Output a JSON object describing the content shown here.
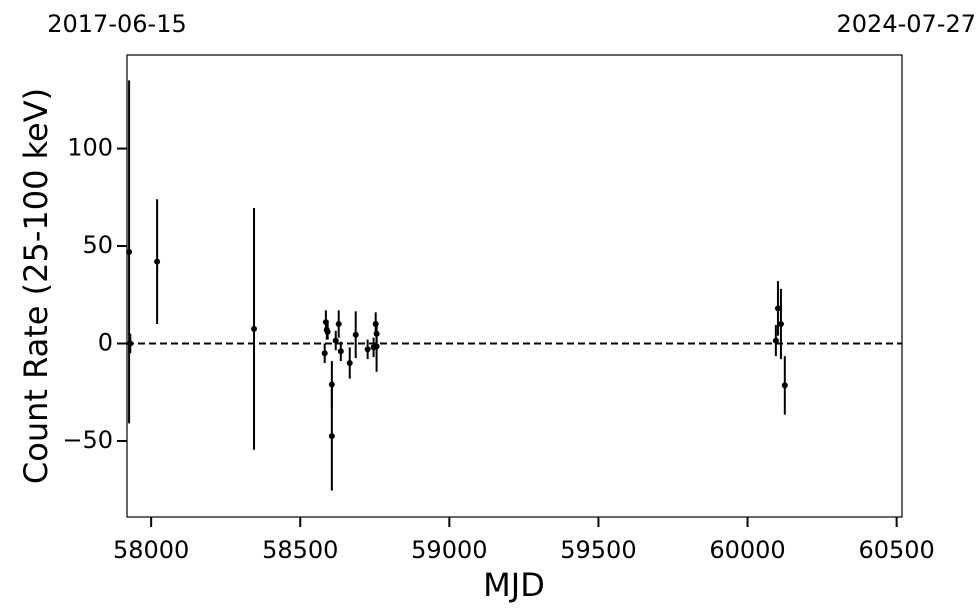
{
  "chart_data": {
    "type": "errorbar",
    "xlabel": "MJD",
    "ylabel": "Count Rate (25-100 keV)",
    "series": [
      {
        "color": "#000000",
        "x": [
          57926,
          57930,
          58020,
          58345,
          58582,
          58586,
          58589,
          58592,
          58606,
          58606,
          58619,
          58629,
          58636,
          58666,
          58686,
          58726,
          58746,
          58753,
          58756,
          58756,
          60095,
          60102,
          60112,
          60125
        ],
        "values": [
          47,
          0,
          42,
          7.5,
          -5,
          11,
          7,
          6,
          -21,
          -47.5,
          1.5,
          10,
          -4,
          -10,
          4.5,
          -3,
          -2,
          10,
          -1.5,
          5,
          1.5,
          18,
          10,
          -21.5
        ],
        "errors": [
          88,
          5,
          32,
          62,
          5,
          6,
          5,
          4,
          12,
          28,
          5,
          7,
          5,
          8,
          12,
          5,
          5,
          6,
          13,
          5,
          8,
          14,
          18,
          15
        ]
      }
    ],
    "hline": 0,
    "xlim": [
      57919,
      60518
    ],
    "ylim": [
      -89,
      148
    ],
    "xticks": [
      58000,
      58500,
      59000,
      59500,
      60000,
      60500
    ],
    "yticks": [
      {
        "value": -50,
        "label": "−50"
      },
      0,
      50,
      100
    ],
    "x2ticks": [
      {
        "value": 57919,
        "label": "2017-06-15"
      },
      {
        "value": 60518,
        "label": "2024-07-27"
      }
    ]
  }
}
